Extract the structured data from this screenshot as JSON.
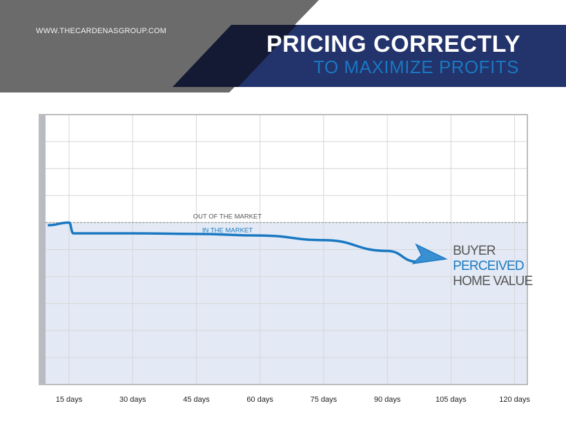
{
  "header": {
    "website": "WWW.THECARDENASGROUP.COM",
    "title": "PRICING CORRECTLY",
    "subtitle": "TO MAXIMIZE PROFITS"
  },
  "colors": {
    "banner_gray": "#6b6b6b",
    "banner_dark": "#141a33",
    "banner_navy": "#23336b",
    "accent_blue": "#1a78c2",
    "text_dark": "#555555",
    "plot_fill": "#e3eaf5",
    "grid": "#d6d6d6"
  },
  "chart_data": {
    "type": "line",
    "x": [
      10,
      15,
      16,
      30,
      45,
      60,
      75,
      90,
      97
    ],
    "y": [
      59,
      60,
      56,
      56,
      55.8,
      55.2,
      53.5,
      49.5,
      45.5
    ],
    "xlim": [
      8,
      123
    ],
    "ylim": [
      0,
      100
    ],
    "x_ticks": [
      15,
      30,
      45,
      60,
      75,
      90,
      105,
      120
    ],
    "x_tick_labels": [
      "15 days",
      "30 days",
      "45 days",
      "60 days",
      "75 days",
      "90 days",
      "105 days",
      "120 days"
    ],
    "threshold": 60,
    "threshold_label_above": "OUT OF THE MARKET",
    "threshold_label_below": "IN THE MARKET",
    "series_label": [
      "BUYER",
      "PERCEIVED",
      "HOME VALUE"
    ],
    "grid": true,
    "legend": "none"
  }
}
